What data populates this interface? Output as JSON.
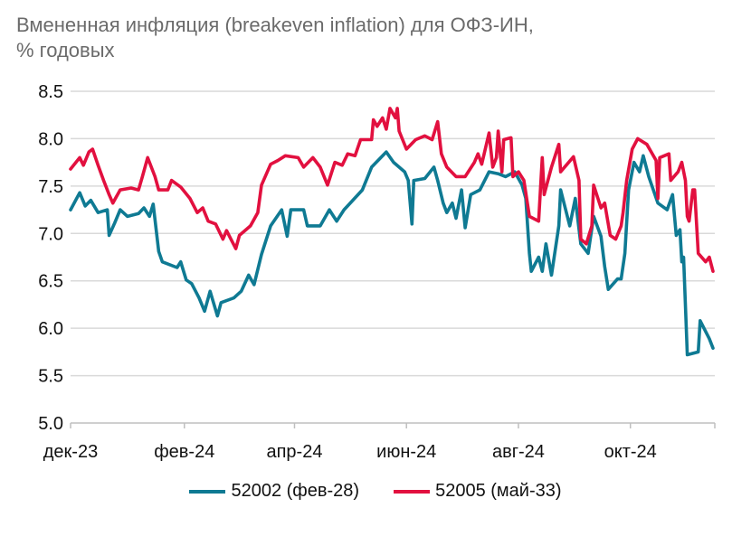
{
  "chart_data": {
    "type": "line",
    "title": "Вмененная инфляция (breakeven inflation) для ОФЗ-ИН,",
    "subtitle": "% годовых",
    "xlabel": "",
    "ylabel": "",
    "x_unit": "days since 2023-12-01",
    "xlim": [
      0,
      351
    ],
    "ylim": [
      5.0,
      8.5
    ],
    "yticks": [
      "5.0",
      "5.5",
      "6.0",
      "6.5",
      "7.0",
      "7.5",
      "8.0",
      "8.5"
    ],
    "xticks": [
      {
        "label": "дек-23",
        "day": 0
      },
      {
        "label": "фев-24",
        "day": 62
      },
      {
        "label": "апр-24",
        "day": 122
      },
      {
        "label": "июн-24",
        "day": 183
      },
      {
        "label": "авг-24",
        "day": 244
      },
      {
        "label": "окт-24",
        "day": 305
      }
    ],
    "grid": true,
    "legend_position": "bottom",
    "series": [
      {
        "name": "52002 (фев-28)",
        "color": "#0f7a93",
        "x": [
          0,
          5,
          8,
          11,
          15,
          20,
          21,
          24,
          27,
          31,
          37,
          40,
          43,
          45,
          48,
          50,
          58,
          60,
          63,
          66,
          70,
          73,
          76,
          80,
          82,
          89,
          93,
          97,
          100,
          104,
          109,
          115,
          118,
          120,
          127,
          129,
          136,
          141,
          145,
          149,
          159,
          164,
          172,
          176,
          182,
          184,
          186,
          187,
          193,
          198,
          200,
          203,
          205,
          208,
          210,
          213,
          215,
          218,
          223,
          228,
          233,
          237,
          242,
          246,
          248,
          250,
          251,
          255,
          257,
          259,
          262,
          266,
          267,
          272,
          275,
          278,
          282,
          285,
          289,
          291,
          293,
          298,
          300,
          302,
          304,
          307,
          310,
          312,
          315,
          320,
          325,
          328,
          330,
          332,
          333,
          334,
          336,
          342,
          343,
          348,
          350
        ],
        "y": [
          7.25,
          7.43,
          7.29,
          7.35,
          7.22,
          7.25,
          6.98,
          7.11,
          7.25,
          7.18,
          7.21,
          7.27,
          7.18,
          7.31,
          6.81,
          6.7,
          6.64,
          6.7,
          6.51,
          6.47,
          6.32,
          6.18,
          6.39,
          6.13,
          6.27,
          6.32,
          6.39,
          6.56,
          6.46,
          6.78,
          7.08,
          7.25,
          6.97,
          7.25,
          7.25,
          7.08,
          7.08,
          7.25,
          7.13,
          7.25,
          7.46,
          7.7,
          7.86,
          7.75,
          7.65,
          7.56,
          7.1,
          7.56,
          7.58,
          7.7,
          7.56,
          7.32,
          7.22,
          7.32,
          7.16,
          7.46,
          7.06,
          7.41,
          7.46,
          7.65,
          7.63,
          7.6,
          7.65,
          7.51,
          7.37,
          6.79,
          6.6,
          6.75,
          6.6,
          6.89,
          6.56,
          7.08,
          7.46,
          7.08,
          7.37,
          6.89,
          6.79,
          7.18,
          6.97,
          6.65,
          6.41,
          6.52,
          6.52,
          6.79,
          7.46,
          7.75,
          7.65,
          7.82,
          7.6,
          7.32,
          7.25,
          7.41,
          6.98,
          7.04,
          6.7,
          6.75,
          5.72,
          5.75,
          6.08,
          5.89,
          5.79
        ]
      },
      {
        "name": "52005 (май-33)",
        "color": "#e2103f",
        "x": [
          0,
          5,
          7,
          10,
          12,
          15,
          18,
          21,
          23,
          27,
          33,
          37,
          39,
          42,
          46,
          48,
          53,
          55,
          60,
          65,
          69,
          72,
          75,
          79,
          83,
          85,
          90,
          92,
          98,
          102,
          104,
          109,
          113,
          117,
          124,
          127,
          132,
          136,
          140,
          144,
          148,
          151,
          155,
          158,
          164,
          165,
          167,
          170,
          172,
          174,
          177,
          178,
          179,
          183,
          188,
          193,
          197,
          200,
          202,
          205,
          210,
          215,
          220,
          222,
          224,
          228,
          230,
          232,
          233,
          235,
          236,
          240,
          241,
          244,
          247,
          250,
          255,
          257,
          258,
          262,
          266,
          267,
          274,
          277,
          278,
          281,
          284,
          285,
          289,
          291,
          294,
          297,
          300,
          301,
          303,
          306,
          309,
          314,
          319,
          320,
          321,
          326,
          327,
          331,
          333,
          335,
          336,
          337,
          339,
          340,
          342,
          346,
          348,
          350
        ],
        "y": [
          7.68,
          7.8,
          7.72,
          7.86,
          7.89,
          7.72,
          7.56,
          7.41,
          7.32,
          7.46,
          7.48,
          7.46,
          7.59,
          7.8,
          7.6,
          7.46,
          7.46,
          7.56,
          7.49,
          7.37,
          7.22,
          7.27,
          7.13,
          7.1,
          6.94,
          7.03,
          6.84,
          6.98,
          7.08,
          7.22,
          7.51,
          7.73,
          7.77,
          7.82,
          7.8,
          7.7,
          7.8,
          7.7,
          7.51,
          7.75,
          7.72,
          7.84,
          7.82,
          7.99,
          7.99,
          8.2,
          8.13,
          8.22,
          8.1,
          8.32,
          8.22,
          8.32,
          8.08,
          7.89,
          7.99,
          8.03,
          7.99,
          8.18,
          7.84,
          7.7,
          7.6,
          7.6,
          7.75,
          7.84,
          7.73,
          8.06,
          7.7,
          7.8,
          8.08,
          7.65,
          7.99,
          8.01,
          7.6,
          7.65,
          7.56,
          7.18,
          7.13,
          7.8,
          7.41,
          7.7,
          7.94,
          7.65,
          7.81,
          7.56,
          6.94,
          6.89,
          7.08,
          7.51,
          7.27,
          7.32,
          6.98,
          6.94,
          7.08,
          7.22,
          7.56,
          7.89,
          8.0,
          7.94,
          7.77,
          7.37,
          7.8,
          7.84,
          7.56,
          7.65,
          7.75,
          7.56,
          7.18,
          7.13,
          7.46,
          7.46,
          6.79,
          6.7,
          6.75,
          6.6
        ]
      }
    ]
  }
}
